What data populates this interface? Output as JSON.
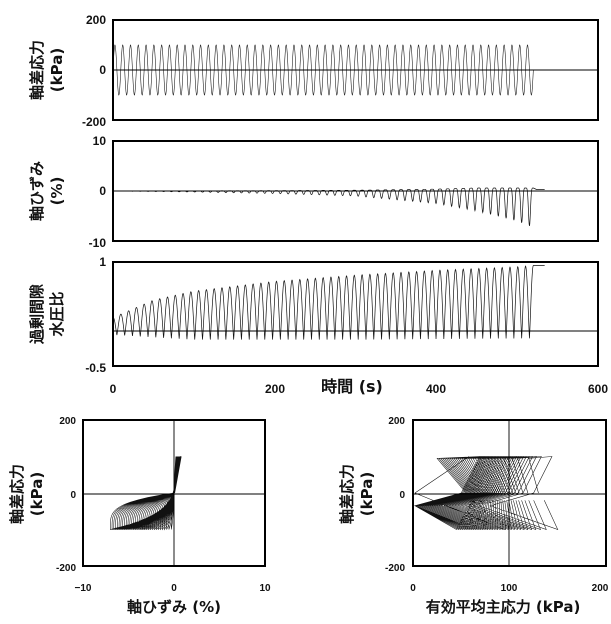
{
  "chart_data": [
    {
      "id": "deviator_stress_time",
      "type": "line",
      "ylabel_lines": [
        "軸差応力",
        "(kPa)"
      ],
      "ylim": [
        -200,
        200
      ],
      "yticks": [
        "200",
        "0",
        "-200"
      ],
      "xlim": [
        0,
        600
      ],
      "x_range": [
        0,
        520
      ],
      "amplitude": 100,
      "cycles": 54
    },
    {
      "id": "axial_strain_time",
      "type": "line",
      "ylabel_lines": [
        "軸ひずみ",
        "(%)"
      ],
      "ylim": [
        -10,
        10
      ],
      "yticks": [
        "10",
        "0",
        "-10"
      ],
      "xlim": [
        0,
        600
      ],
      "x_range": [
        0,
        520
      ],
      "points": [
        [
          0,
          0
        ],
        [
          100,
          -0.2
        ],
        [
          200,
          -0.5
        ],
        [
          300,
          -1.0
        ],
        [
          400,
          -2.5
        ],
        [
          450,
          -4.0
        ],
        [
          500,
          -6.0
        ],
        [
          515,
          -7.0
        ]
      ],
      "final_value": 0.3,
      "cycles": 54
    },
    {
      "id": "excess_pore_pressure_ratio_time",
      "type": "line",
      "ylabel_lines": [
        "過剰間隙",
        "水圧比"
      ],
      "ylim": [
        -0.5,
        1
      ],
      "yticks": [
        "1",
        "-0.5"
      ],
      "xlim": [
        0,
        600
      ],
      "xticks": [
        "0",
        "200",
        "400",
        "600"
      ],
      "xlabel": "時間 (s)",
      "x_range": [
        0,
        520
      ],
      "peak_envelope": [
        [
          0,
          0.2
        ],
        [
          50,
          0.45
        ],
        [
          100,
          0.58
        ],
        [
          200,
          0.72
        ],
        [
          300,
          0.81
        ],
        [
          400,
          0.88
        ],
        [
          500,
          0.93
        ],
        [
          520,
          0.95
        ]
      ],
      "trough_envelope": [
        [
          0,
          -0.05
        ],
        [
          100,
          -0.12
        ],
        [
          300,
          -0.12
        ],
        [
          520,
          -0.1
        ]
      ],
      "final_value": 0.95,
      "cycles": 54
    },
    {
      "id": "stress_strain",
      "type": "line",
      "ylabel_lines": [
        "軸差応力",
        "(kPa)"
      ],
      "xlabel": "軸ひずみ (%)",
      "xlim": [
        -10,
        10
      ],
      "ylim": [
        -200,
        200
      ],
      "xticks": [
        "−10",
        "0",
        "10"
      ],
      "yticks": [
        "200",
        "0",
        "-200"
      ],
      "max_compression_strain": -7,
      "max_extension_strain": 0.8,
      "amplitude": 100
    },
    {
      "id": "stress_path",
      "type": "line",
      "ylabel_lines": [
        "軸差応力",
        "(kPa)"
      ],
      "xlabel": "有効平均主応力 (kPa)",
      "xlim": [
        0,
        200
      ],
      "ylim": [
        -200,
        200
      ],
      "xticks": [
        "0",
        "100",
        "200"
      ],
      "yticks": [
        "200",
        "0",
        "-200"
      ],
      "initial_p": 130,
      "amplitude": 100
    }
  ]
}
